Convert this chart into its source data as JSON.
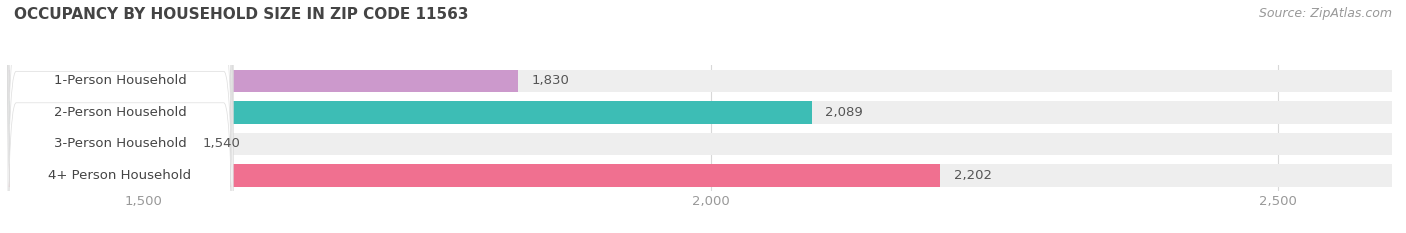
{
  "title": "OCCUPANCY BY HOUSEHOLD SIZE IN ZIP CODE 11563",
  "source": "Source: ZipAtlas.com",
  "categories": [
    "1-Person Household",
    "2-Person Household",
    "3-Person Household",
    "4+ Person Household"
  ],
  "values": [
    1830,
    2089,
    1540,
    2202
  ],
  "bar_colors": [
    "#cc99cc",
    "#3dbdb5",
    "#aab4e8",
    "#f07090"
  ],
  "xlim_min": 1380,
  "xlim_max": 2600,
  "xticks": [
    1500,
    2000,
    2500
  ],
  "background_color": "#ffffff",
  "bar_bg_color": "#eeeeee",
  "title_fontsize": 11,
  "label_fontsize": 9.5,
  "value_fontsize": 9.5,
  "source_fontsize": 9,
  "title_color": "#444444",
  "tick_color": "#999999",
  "source_color": "#999999",
  "label_color": "#444444",
  "value_color": "#555555"
}
